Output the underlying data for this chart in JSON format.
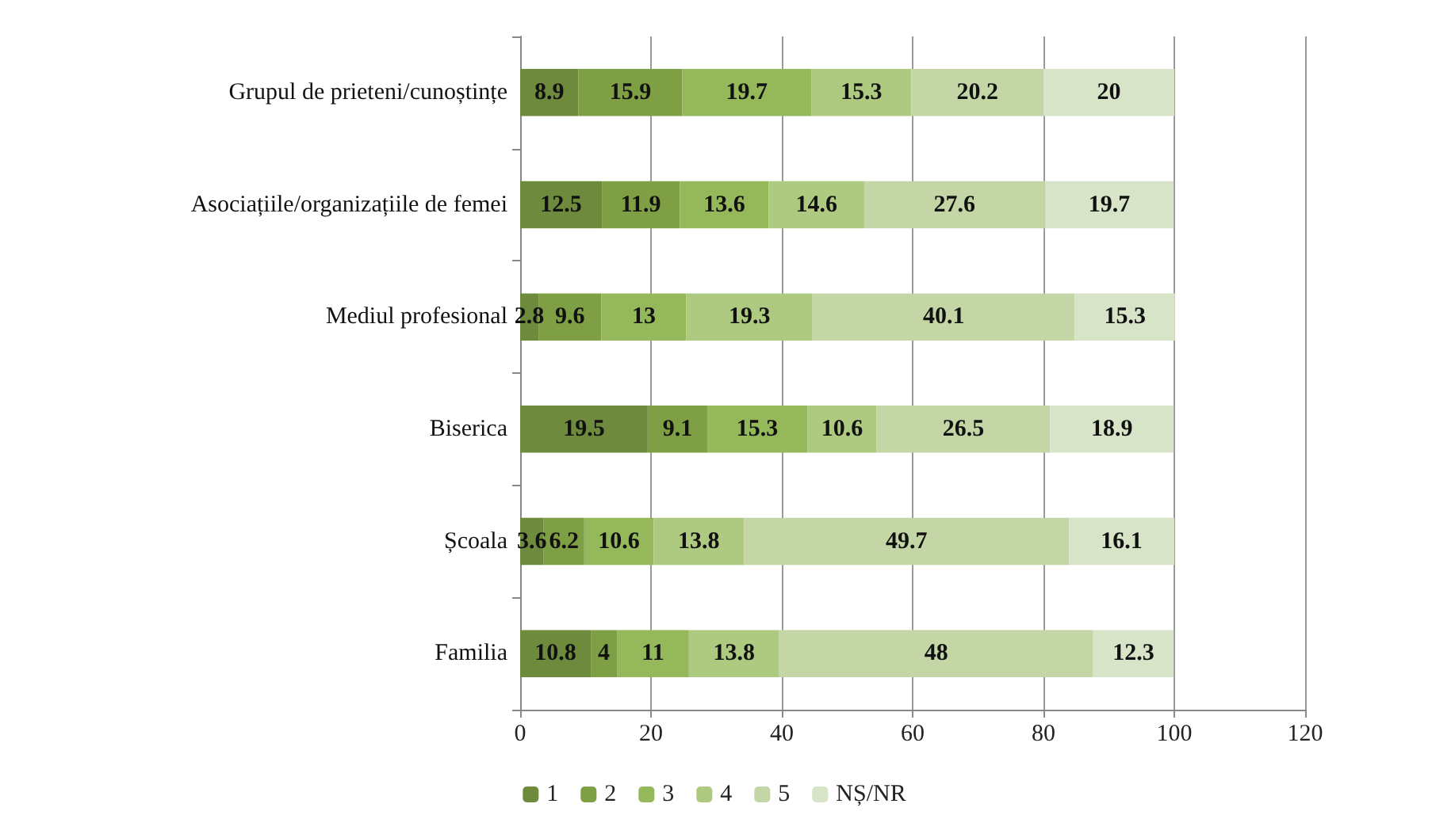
{
  "chart_data": {
    "type": "bar",
    "orientation": "horizontal",
    "stacked": true,
    "data_labels": true,
    "grid": "x",
    "legend": "bottom",
    "categories": [
      "Grupul de prieteni/cunoștințe",
      "Asociațiile/organizațiile de femei",
      "Mediul profesional",
      "Biserica",
      "Școala",
      "Familia"
    ],
    "xlim": [
      0,
      120
    ],
    "xticks": [
      0,
      20,
      40,
      60,
      80,
      100,
      120
    ],
    "series": [
      {
        "name": "1",
        "color": "#6e8b3d",
        "values": [
          8.9,
          12.5,
          2.8,
          19.5,
          3.6,
          10.8
        ]
      },
      {
        "name": "2",
        "color": "#7f9f45",
        "values": [
          15.9,
          11.9,
          9.6,
          9.1,
          6.2,
          4
        ]
      },
      {
        "name": "3",
        "color": "#94b85a",
        "values": [
          19.7,
          13.6,
          13,
          15.3,
          10.6,
          11
        ]
      },
      {
        "name": "4",
        "color": "#aeca80",
        "values": [
          15.3,
          14.6,
          19.3,
          10.6,
          13.8,
          13.8
        ]
      },
      {
        "name": "5",
        "color": "#c4d6a6",
        "values": [
          20.2,
          27.6,
          40.1,
          26.5,
          49.7,
          48
        ]
      },
      {
        "name": "NȘ/NR",
        "color": "#d8e4c8",
        "values": [
          20,
          19.7,
          15.3,
          18.9,
          16.1,
          12.3
        ]
      }
    ]
  }
}
